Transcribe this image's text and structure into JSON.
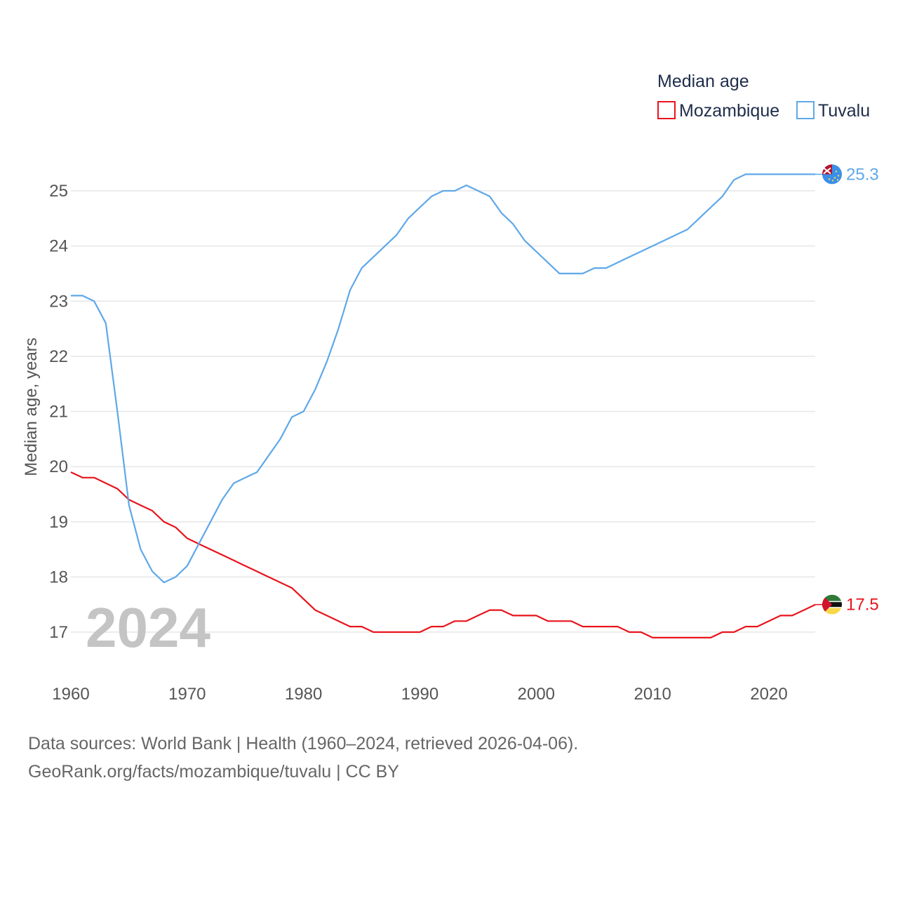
{
  "chart_data": {
    "type": "line",
    "legend_title": "Median age",
    "legend_position": "top-right",
    "ylabel": "Median age, years",
    "xlabel": "",
    "xlim": [
      1960,
      2024
    ],
    "ylim": [
      16.5,
      25.5
    ],
    "x_ticks": [
      1960,
      1970,
      1980,
      1990,
      2000,
      2010,
      2020
    ],
    "y_ticks": [
      17,
      18,
      19,
      20,
      21,
      22,
      23,
      24,
      25
    ],
    "highlight_year": "2024",
    "series": [
      {
        "name": "Mozambique",
        "color": "#e8141c",
        "end_label": "17.5",
        "flag_icon": "mozambique-flag-icon",
        "x": [
          1960,
          1961,
          1962,
          1963,
          1964,
          1965,
          1966,
          1967,
          1968,
          1969,
          1970,
          1971,
          1972,
          1973,
          1974,
          1975,
          1976,
          1977,
          1978,
          1979,
          1980,
          1981,
          1982,
          1983,
          1984,
          1985,
          1986,
          1987,
          1988,
          1989,
          1990,
          1991,
          1992,
          1993,
          1994,
          1995,
          1996,
          1997,
          1998,
          1999,
          2000,
          2001,
          2002,
          2003,
          2004,
          2005,
          2006,
          2007,
          2008,
          2009,
          2010,
          2011,
          2012,
          2013,
          2014,
          2015,
          2016,
          2017,
          2018,
          2019,
          2020,
          2021,
          2022,
          2023,
          2024
        ],
        "values": [
          19.9,
          19.8,
          19.8,
          19.7,
          19.6,
          19.4,
          19.3,
          19.2,
          19.0,
          18.9,
          18.7,
          18.6,
          18.5,
          18.4,
          18.3,
          18.2,
          18.1,
          18.0,
          17.9,
          17.8,
          17.6,
          17.4,
          17.3,
          17.2,
          17.1,
          17.1,
          17.0,
          17.0,
          17.0,
          17.0,
          17.0,
          17.1,
          17.1,
          17.2,
          17.2,
          17.3,
          17.4,
          17.4,
          17.3,
          17.3,
          17.3,
          17.2,
          17.2,
          17.2,
          17.1,
          17.1,
          17.1,
          17.1,
          17.0,
          17.0,
          16.9,
          16.9,
          16.9,
          16.9,
          16.9,
          16.9,
          17.0,
          17.0,
          17.1,
          17.1,
          17.2,
          17.3,
          17.3,
          17.4,
          17.5
        ]
      },
      {
        "name": "Tuvalu",
        "color": "#5fa8e8",
        "end_label": "25.3",
        "flag_icon": "tuvalu-flag-icon",
        "x": [
          1960,
          1961,
          1962,
          1963,
          1964,
          1965,
          1966,
          1967,
          1968,
          1969,
          1970,
          1971,
          1972,
          1973,
          1974,
          1975,
          1976,
          1977,
          1978,
          1979,
          1980,
          1981,
          1982,
          1983,
          1984,
          1985,
          1986,
          1987,
          1988,
          1989,
          1990,
          1991,
          1992,
          1993,
          1994,
          1995,
          1996,
          1997,
          1998,
          1999,
          2000,
          2001,
          2002,
          2003,
          2004,
          2005,
          2006,
          2007,
          2008,
          2009,
          2010,
          2011,
          2012,
          2013,
          2014,
          2015,
          2016,
          2017,
          2018,
          2019,
          2020,
          2021,
          2022,
          2023,
          2024
        ],
        "values": [
          23.1,
          23.1,
          23.0,
          22.6,
          21.0,
          19.3,
          18.5,
          18.1,
          17.9,
          18.0,
          18.2,
          18.6,
          19.0,
          19.4,
          19.7,
          19.8,
          19.9,
          20.2,
          20.5,
          20.9,
          21.0,
          21.4,
          21.9,
          22.5,
          23.2,
          23.6,
          23.8,
          24.0,
          24.2,
          24.5,
          24.7,
          24.9,
          25.0,
          25.0,
          25.1,
          25.0,
          24.9,
          24.6,
          24.4,
          24.1,
          23.9,
          23.7,
          23.5,
          23.5,
          23.5,
          23.6,
          23.6,
          23.7,
          23.8,
          23.9,
          24.0,
          24.1,
          24.2,
          24.3,
          24.5,
          24.7,
          24.9,
          25.2,
          25.3,
          25.3,
          25.3,
          25.3,
          25.3,
          25.3,
          25.3
        ]
      }
    ]
  },
  "footer": {
    "line1": "Data sources: World Bank | Health (1960–2024, retrieved 2026-04-06).",
    "line2": "GeoRank.org/facts/mozambique/tuvalu | CC BY"
  }
}
